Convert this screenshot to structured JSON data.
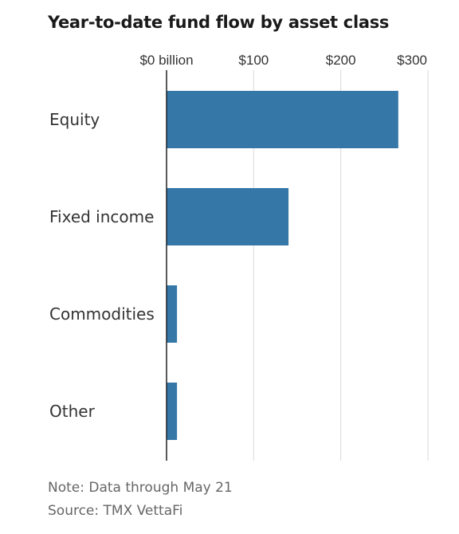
{
  "chart_data": {
    "type": "bar",
    "orientation": "horizontal",
    "title": "Year-to-date fund flow by asset class",
    "categories": [
      "Equity",
      "Fixed income",
      "Commodities",
      "Other"
    ],
    "values": [
      266,
      140,
      12,
      12
    ],
    "xlim": [
      0,
      300
    ],
    "x_ticks": [
      0,
      100,
      200,
      300
    ],
    "x_tick_labels": [
      "$0 billion",
      "$100",
      "$200",
      "$300"
    ],
    "xlabel": "",
    "ylabel": "",
    "grid": true,
    "bar_color": "#3578a8"
  },
  "footer": {
    "note": "Note: Data through May 21",
    "source": "Source: TMX VettaFi"
  }
}
